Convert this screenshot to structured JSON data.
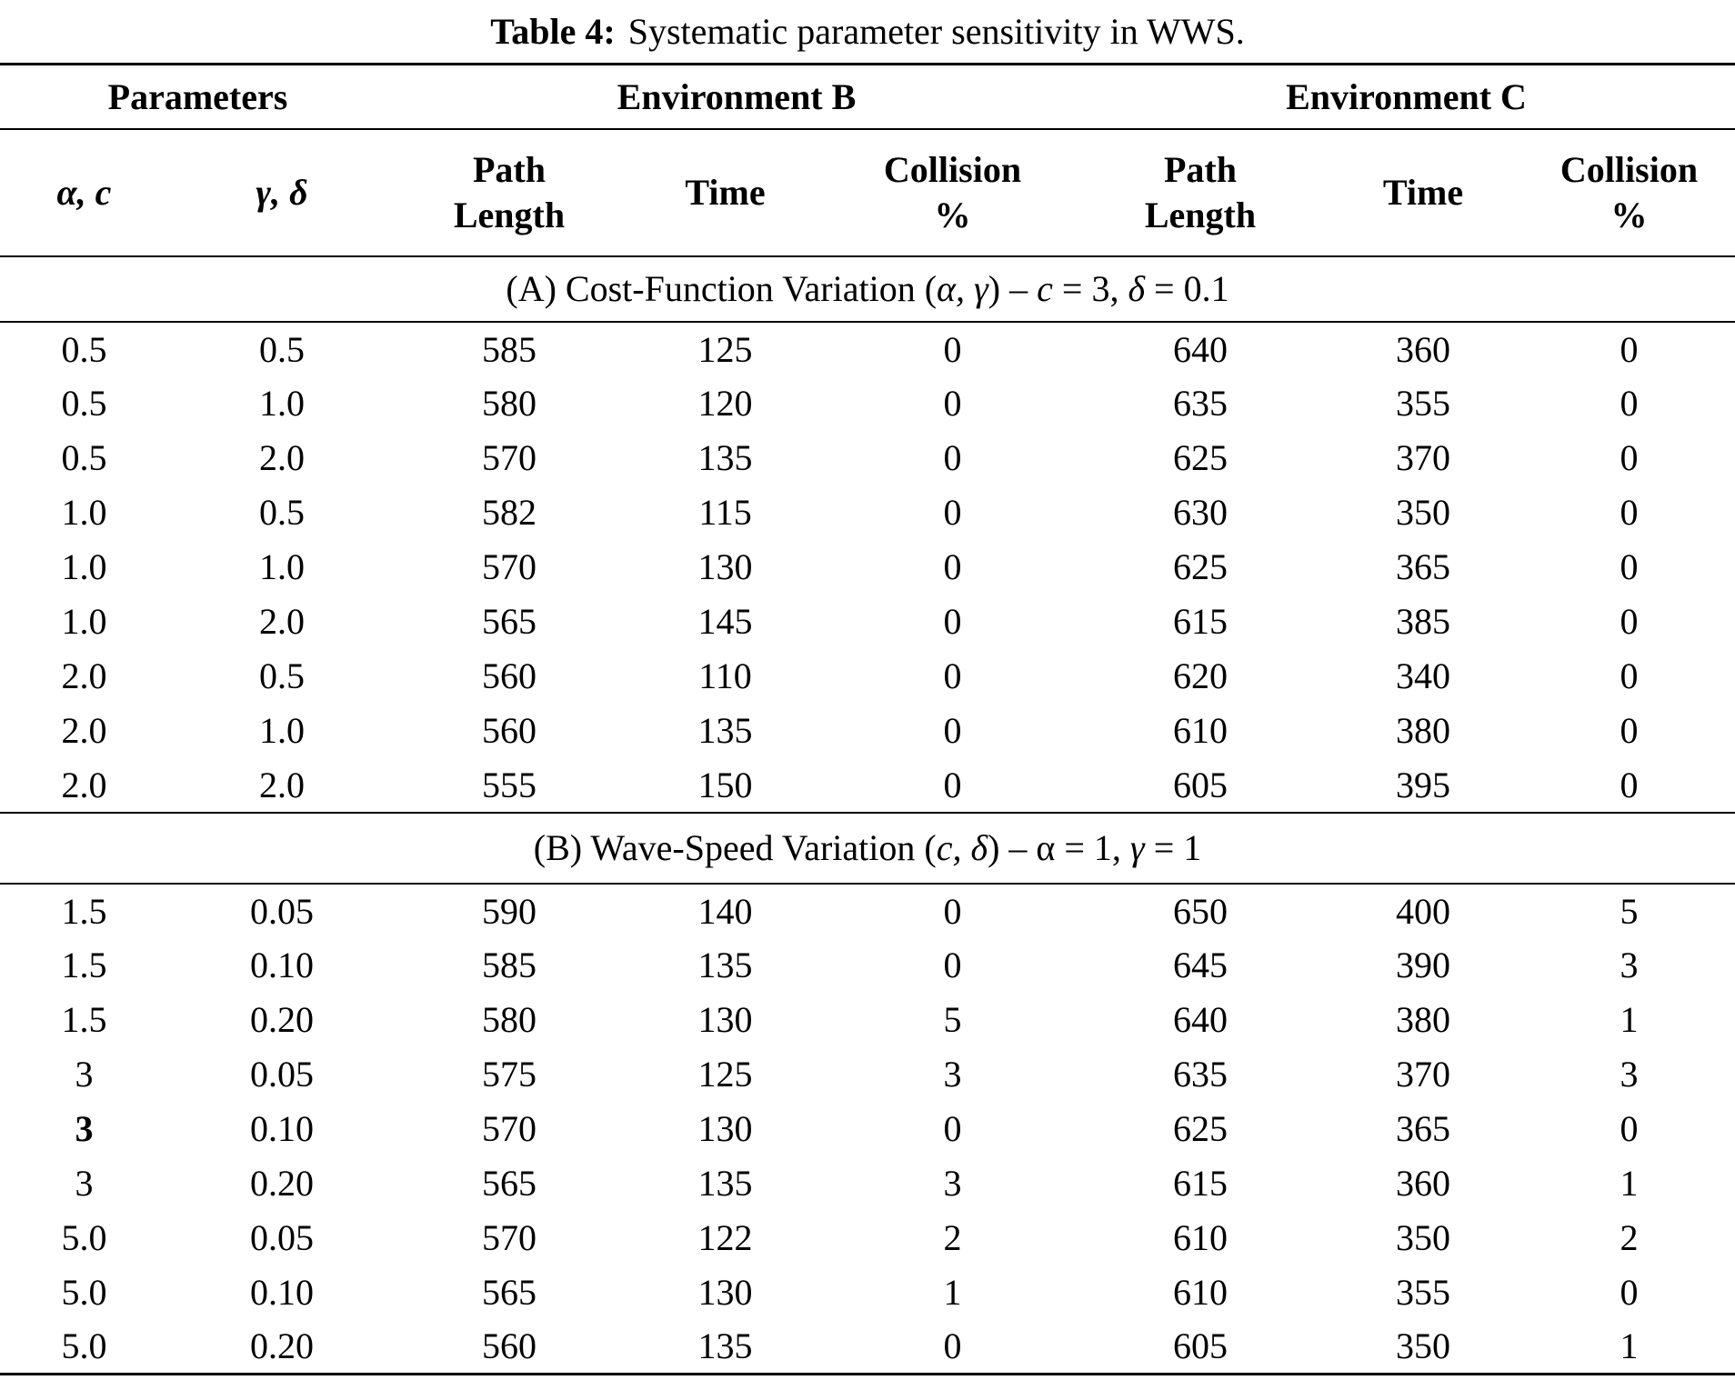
{
  "title": {
    "label": "Table 4:",
    "text": "Systematic parameter sensitivity in WWS."
  },
  "header": {
    "groups": [
      {
        "label": "Parameters"
      },
      {
        "label": "Environment B"
      },
      {
        "label": "Environment C"
      }
    ],
    "columns": [
      {
        "l1": "α, c"
      },
      {
        "l1": "γ, δ"
      },
      {
        "l1": "Path",
        "l2": "Length"
      },
      {
        "l1": "Time"
      },
      {
        "l1": "Collision",
        "l2": "%"
      },
      {
        "l1": "Path",
        "l2": "Length"
      },
      {
        "l1": "Time"
      },
      {
        "l1": "Collision",
        "l2": "%"
      }
    ]
  },
  "sections": [
    {
      "heading_parts": {
        "pre": "(A) Cost-Function Variation (",
        "greek": "α, γ",
        "mid1": ") – ",
        "var1": "c",
        "mid2": " = 3, ",
        "var2": "δ",
        "post": " = 0.1"
      },
      "rows": [
        [
          "0.5",
          "0.5",
          "585",
          "125",
          "0",
          "640",
          "360",
          "0"
        ],
        [
          "0.5",
          "1.0",
          "580",
          "120",
          "0",
          "635",
          "355",
          "0"
        ],
        [
          "0.5",
          "2.0",
          "570",
          "135",
          "0",
          "625",
          "370",
          "0"
        ],
        [
          "1.0",
          "0.5",
          "582",
          "115",
          "0",
          "630",
          "350",
          "0"
        ],
        [
          "1.0",
          "1.0",
          "570",
          "130",
          "0",
          "625",
          "365",
          "0"
        ],
        [
          "1.0",
          "2.0",
          "565",
          "145",
          "0",
          "615",
          "385",
          "0"
        ],
        [
          "2.0",
          "0.5",
          "560",
          "110",
          "0",
          "620",
          "340",
          "0"
        ],
        [
          "2.0",
          "1.0",
          "560",
          "135",
          "0",
          "610",
          "380",
          "0"
        ],
        [
          "2.0",
          "2.0",
          "555",
          "150",
          "0",
          "605",
          "395",
          "0"
        ]
      ],
      "bold_cells": []
    },
    {
      "heading_parts": {
        "pre": "(B) Wave-Speed Variation (",
        "greek": "c, δ",
        "mid1": ") – ",
        "var1": "α",
        "mid2": " = 1, ",
        "var2": "γ",
        "post": " = 1"
      },
      "rows": [
        [
          "1.5",
          "0.05",
          "590",
          "140",
          "0",
          "650",
          "400",
          "5"
        ],
        [
          "1.5",
          "0.10",
          "585",
          "135",
          "0",
          "645",
          "390",
          "3"
        ],
        [
          "1.5",
          "0.20",
          "580",
          "130",
          "5",
          "640",
          "380",
          "1"
        ],
        [
          "3",
          "0.05",
          "575",
          "125",
          "3",
          "635",
          "370",
          "3"
        ],
        [
          "3",
          "0.10",
          "570",
          "130",
          "0",
          "625",
          "365",
          "0"
        ],
        [
          "3",
          "0.20",
          "565",
          "135",
          "3",
          "615",
          "360",
          "1"
        ],
        [
          "5.0",
          "0.05",
          "570",
          "122",
          "2",
          "610",
          "350",
          "2"
        ],
        [
          "5.0",
          "0.10",
          "565",
          "130",
          "1",
          "610",
          "355",
          "0"
        ],
        [
          "5.0",
          "0.20",
          "560",
          "135",
          "0",
          "605",
          "350",
          "1"
        ]
      ],
      "bold_cells": [
        [
          4,
          0
        ]
      ]
    }
  ]
}
